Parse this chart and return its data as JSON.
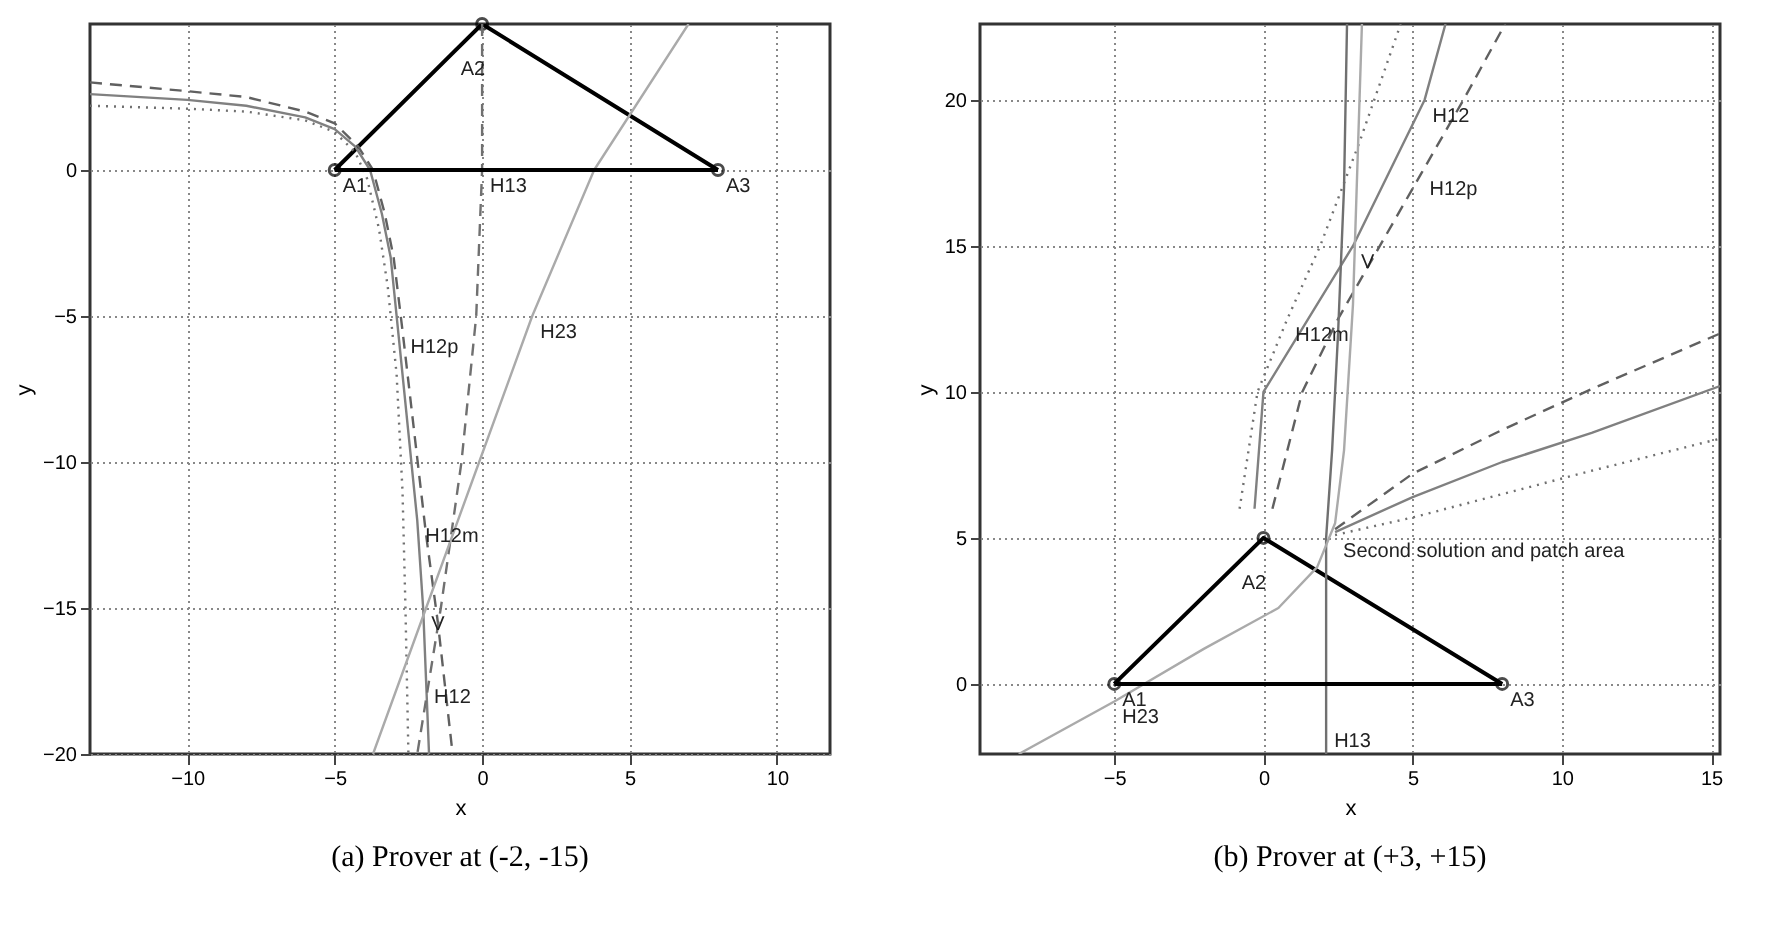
{
  "chart_data": [
    {
      "type": "line",
      "title": "(a) Prover at (-2, -15)",
      "xlabel": "x",
      "ylabel": "y",
      "xlim": [
        -13.3,
        11.8
      ],
      "ylim": [
        -20,
        5
      ],
      "xticks": [
        -10,
        -5,
        0,
        5,
        10
      ],
      "yticks": [
        -20,
        -15,
        -10,
        -5,
        0
      ],
      "grid": true,
      "series": [
        {
          "color": "#000000",
          "line_style": "solid",
          "x": [
            -5,
            -1,
            0,
            8
          ],
          "values": [
            0,
            4,
            5,
            0
          ]
        },
        {
          "color": "#000000",
          "type": "scatter",
          "marker": "circle",
          "x": [
            -5,
            0,
            8
          ],
          "values": [
            0,
            5,
            0
          ]
        },
        {
          "color": "#808080",
          "line_style": "solid",
          "x": [
            -13.3,
            -10,
            -8,
            -6,
            -5,
            -4.3,
            -3.8,
            -3.4,
            -3.1,
            -2.8,
            -2.5,
            -2.2,
            -2.0,
            -1.9,
            -1.8
          ],
          "values": [
            2.6,
            2.4,
            2.2,
            1.8,
            1.4,
            0.8,
            0,
            -1.5,
            -3,
            -6,
            -9,
            -12,
            -15,
            -17.5,
            -20
          ]
        },
        {
          "color": "#606060",
          "line_style": "dashed",
          "x": [
            -13.3,
            -10,
            -8,
            -6,
            -5,
            -4.2,
            -3.7,
            -3.3,
            -3.0,
            -2.7,
            -2.3,
            -1.9,
            -1.5,
            -1.0
          ],
          "values": [
            3.0,
            2.7,
            2.5,
            2.0,
            1.6,
            0.8,
            0,
            -1.5,
            -3,
            -5.5,
            -9,
            -12.5,
            -15.5,
            -20
          ]
        },
        {
          "color": "#707070",
          "line_style": "dotted",
          "x": [
            -13.3,
            -10,
            -8,
            -6,
            -5,
            -4.3,
            -3.9,
            -3.5,
            -3.2,
            -2.9,
            -2.7,
            -2.6,
            -2.5
          ],
          "values": [
            2.2,
            2.1,
            2.0,
            1.7,
            1.3,
            0.6,
            -0.3,
            -2,
            -4,
            -7,
            -11,
            -15,
            -20
          ]
        },
        {
          "color": "#707070",
          "line_style": "dashed",
          "x": [
            0,
            0,
            -0.2,
            -0.7,
            -1.4,
            -2.2
          ],
          "values": [
            5,
            0,
            -5,
            -10,
            -15,
            -20
          ]
        },
        {
          "color": "#aaaaaa",
          "line_style": "solid",
          "x": [
            7.0,
            3.8,
            1.7,
            -0.1,
            -1.9,
            -3.7
          ],
          "values": [
            5,
            0,
            -5,
            -10,
            -15,
            -20
          ]
        },
        {
          "color": "#000000",
          "line_style": "solid",
          "x": [
            -5,
            8
          ],
          "values": [
            0,
            0
          ]
        }
      ],
      "annotations": [
        {
          "text": "A1",
          "x": -5,
          "y": 0
        },
        {
          "text": "A2",
          "x": -1,
          "y": 4
        },
        {
          "text": "A3",
          "x": 8,
          "y": 0
        },
        {
          "text": "H13",
          "x": 0,
          "y": 0
        },
        {
          "text": "H23",
          "x": 1.7,
          "y": -5
        },
        {
          "text": "H12p",
          "x": -2.7,
          "y": -5.5
        },
        {
          "text": "H12m",
          "x": -2.2,
          "y": -12
        },
        {
          "text": "V",
          "x": -2.0,
          "y": -15
        },
        {
          "text": "H12",
          "x": -1.9,
          "y": -17.5
        }
      ]
    },
    {
      "type": "line",
      "title": "(b) Prover at (+3, +15)",
      "xlabel": "x",
      "ylabel": "y",
      "xlim": [
        -9.5,
        15.3
      ],
      "ylim": [
        -2.4,
        22.6
      ],
      "xticks": [
        -5,
        0,
        5,
        10,
        15
      ],
      "yticks": [
        0,
        5,
        10,
        15,
        20
      ],
      "grid": true,
      "series": [
        {
          "color": "#000000",
          "line_style": "solid",
          "x": [
            -5,
            -1,
            0,
            8
          ],
          "values": [
            0,
            4,
            5,
            0
          ]
        },
        {
          "color": "#000000",
          "type": "scatter",
          "marker": "circle",
          "x": [
            -5,
            0,
            8
          ],
          "values": [
            0,
            5,
            0
          ]
        },
        {
          "color": "#808080",
          "line_style": "solid",
          "x": [
            -0.3,
            0,
            1.5,
            3.0,
            4.2,
            5.4,
            6.1
          ],
          "values": [
            6,
            10,
            12.5,
            15,
            17.5,
            20,
            22.6
          ]
        },
        {
          "color": "#606060",
          "line_style": "dashed",
          "x": [
            0.3,
            1.3,
            2.5,
            3.9,
            5.3,
            6.7,
            8.1
          ],
          "values": [
            6,
            10,
            12.5,
            15,
            17.5,
            20,
            22.6
          ]
        },
        {
          "color": "#707070",
          "line_style": "dotted",
          "x": [
            -0.8,
            -0.2,
            0.8,
            1.9,
            3.2,
            4.6
          ],
          "values": [
            6,
            10,
            12.5,
            15,
            18.5,
            22.6
          ]
        },
        {
          "color": "#606060",
          "line_style": "dashed",
          "x": [
            2.4,
            5,
            8,
            11,
            15.3
          ],
          "values": [
            5.3,
            7.2,
            8.7,
            10.1,
            12
          ]
        },
        {
          "color": "#808080",
          "line_style": "solid",
          "x": [
            2.4,
            5,
            8,
            11,
            15.3
          ],
          "values": [
            5.2,
            6.4,
            7.6,
            8.6,
            10.2
          ]
        },
        {
          "color": "#707070",
          "line_style": "dotted",
          "x": [
            2.4,
            5,
            8,
            11,
            15.3
          ],
          "values": [
            5.1,
            5.7,
            6.5,
            7.3,
            8.4
          ]
        },
        {
          "color": "#707070",
          "line_style": "solid",
          "x": [
            2.1,
            2.1,
            2.1,
            2.3,
            2.5,
            2.7,
            2.8
          ],
          "values": [
            -2.4,
            -1.4,
            5,
            8,
            12,
            17,
            22.6
          ]
        },
        {
          "color": "#aaaaaa",
          "line_style": "solid",
          "x": [
            -8.2,
            -5,
            -2,
            0.5,
            1.8,
            2.4,
            2.7,
            3.0,
            3.3
          ],
          "values": [
            -2.4,
            -0.6,
            1.2,
            2.6,
            4,
            5.5,
            8,
            13,
            22.6
          ]
        },
        {
          "color": "#000000",
          "line_style": "solid",
          "x": [
            -5,
            8
          ],
          "values": [
            0,
            0
          ]
        }
      ],
      "annotations": [
        {
          "text": "A1",
          "x": -5,
          "y": 0
        },
        {
          "text": "A2",
          "x": -1,
          "y": 4
        },
        {
          "text": "A3",
          "x": 8,
          "y": 0
        },
        {
          "text": "H23",
          "x": -5,
          "y": -0.6
        },
        {
          "text": "H13",
          "x": 2.1,
          "y": -1.4
        },
        {
          "text": "H12",
          "x": 5.4,
          "y": 20
        },
        {
          "text": "H12p",
          "x": 5.3,
          "y": 17.5
        },
        {
          "text": "H12m",
          "x": 0.8,
          "y": 12.5
        },
        {
          "text": "V",
          "x": 3.0,
          "y": 15
        },
        {
          "text": "Second solution and patch area",
          "x": 2.4,
          "y": 5.1
        }
      ]
    }
  ]
}
